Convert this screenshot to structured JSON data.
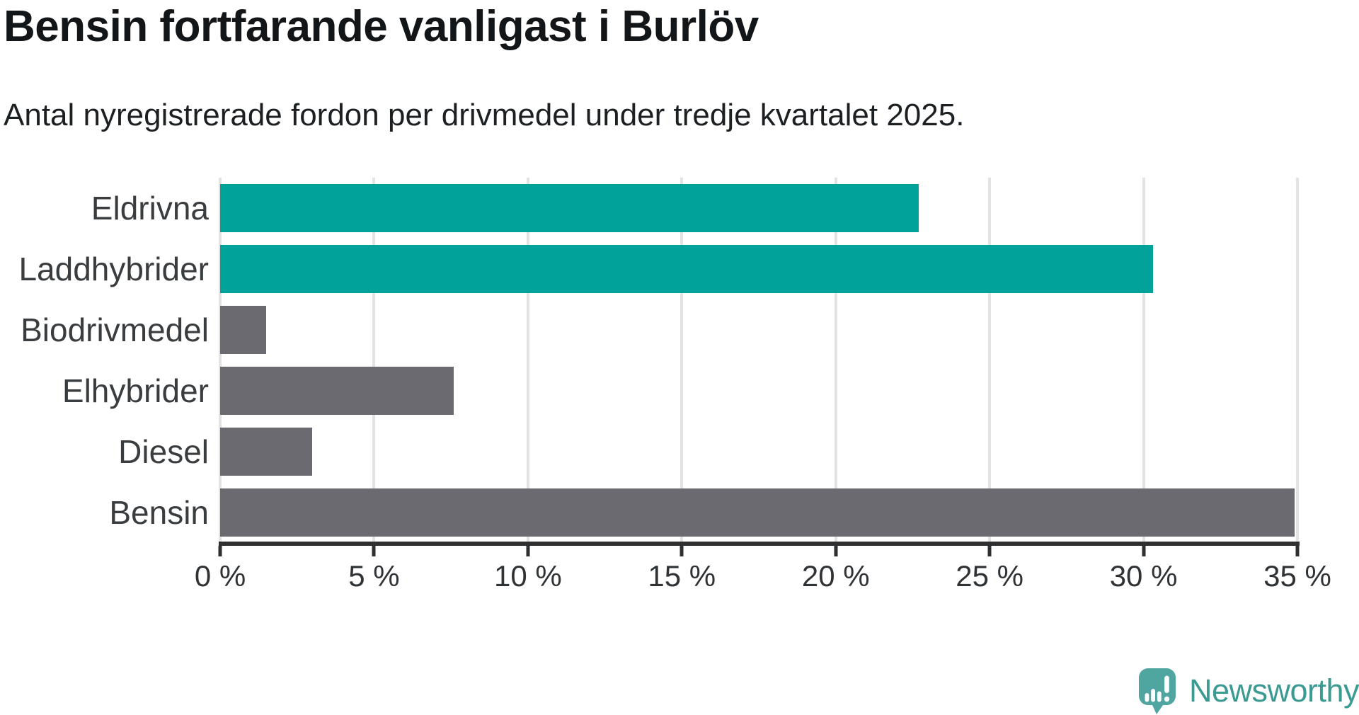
{
  "header": {
    "title": "Bensin fortfarande vanligast i Burlöv",
    "subtitle": "Antal nyregistrerade fordon per drivmedel under tredje kvartalet 2025."
  },
  "chart_data": {
    "type": "bar",
    "orientation": "horizontal",
    "title": "Bensin fortfarande vanligast i Burlöv",
    "subtitle": "Antal nyregistrerade fordon per drivmedel under tredje kvartalet 2025.",
    "categories": [
      "Eldrivna",
      "Laddhybrider",
      "Biodrivmedel",
      "Elhybrider",
      "Diesel",
      "Bensin"
    ],
    "values": [
      22.7,
      30.3,
      1.5,
      7.6,
      3.0,
      34.9
    ],
    "unit": "%",
    "bar_colors": [
      "#00a299",
      "#00a299",
      "#6a6a70",
      "#6a6a70",
      "#6a6a70",
      "#6a6a70"
    ],
    "xlabel": "",
    "ylabel": "",
    "xlim": [
      0,
      35
    ],
    "x_tick_values": [
      0,
      5,
      10,
      15,
      20,
      25,
      30,
      35
    ],
    "x_tick_labels": [
      "0 %",
      "5 %",
      "10 %",
      "15 %",
      "20 %",
      "25 %",
      "30 %",
      "35 %"
    ],
    "grid": "vertical-only",
    "legend": "none"
  },
  "colors": {
    "accent_teal": "#00a299",
    "bar_gray": "#6a6a70",
    "gridline": "#e3e3e3",
    "axis": "#2d2f31",
    "title_text": "#131618",
    "brand_teal": "#3b9a91",
    "logo_bubble_teal": "#4fa5a0"
  },
  "branding": {
    "logo_text": "Newsworthy",
    "logo_icon": "newsworthy-speech-bubble-barchart-icon"
  }
}
